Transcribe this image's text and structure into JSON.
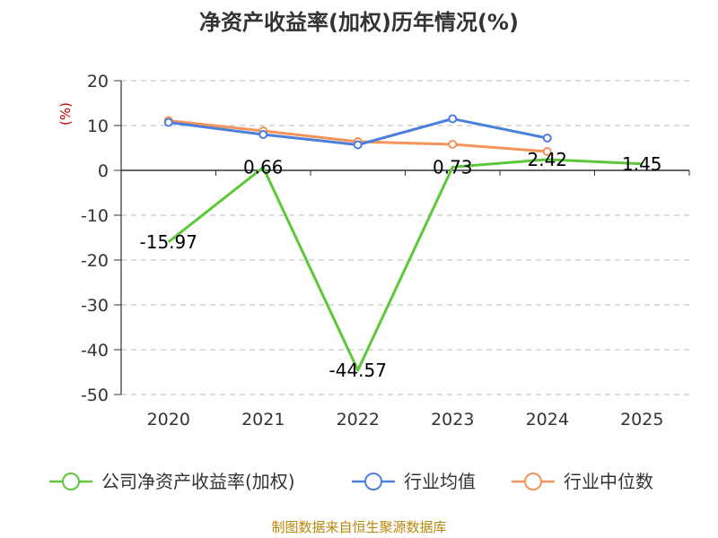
{
  "chart_data": {
    "type": "line",
    "title": "净资产收益率(加权)历年情况(%)",
    "y_unit": "(%)",
    "categories": [
      "2020",
      "2021",
      "2022",
      "2023",
      "2024",
      "2025"
    ],
    "ylim": [
      -50,
      20
    ],
    "y_ticks": [
      20,
      10,
      0,
      -10,
      -20,
      -30,
      -40,
      -50
    ],
    "grid": "horizontal-dashed",
    "legend_position": "bottom",
    "series": [
      {
        "name": "公司净资产收益率(加权)",
        "color": "#5dc73a",
        "values": [
          -15.97,
          0.66,
          -44.57,
          0.73,
          2.42,
          1.45
        ],
        "labels": [
          "-15.97",
          "0.66",
          "-44.57",
          "0.73",
          "2.42",
          "1.45"
        ]
      },
      {
        "name": "行业均值",
        "color": "#4a7fdb",
        "values": [
          10.7,
          8.0,
          5.7,
          11.5,
          7.2,
          null
        ]
      },
      {
        "name": "行业中位数",
        "color": "#f4935a",
        "values": [
          11.1,
          8.8,
          6.4,
          5.8,
          4.2,
          null
        ]
      }
    ],
    "source": "制图数据来自恒生聚源数据库"
  }
}
